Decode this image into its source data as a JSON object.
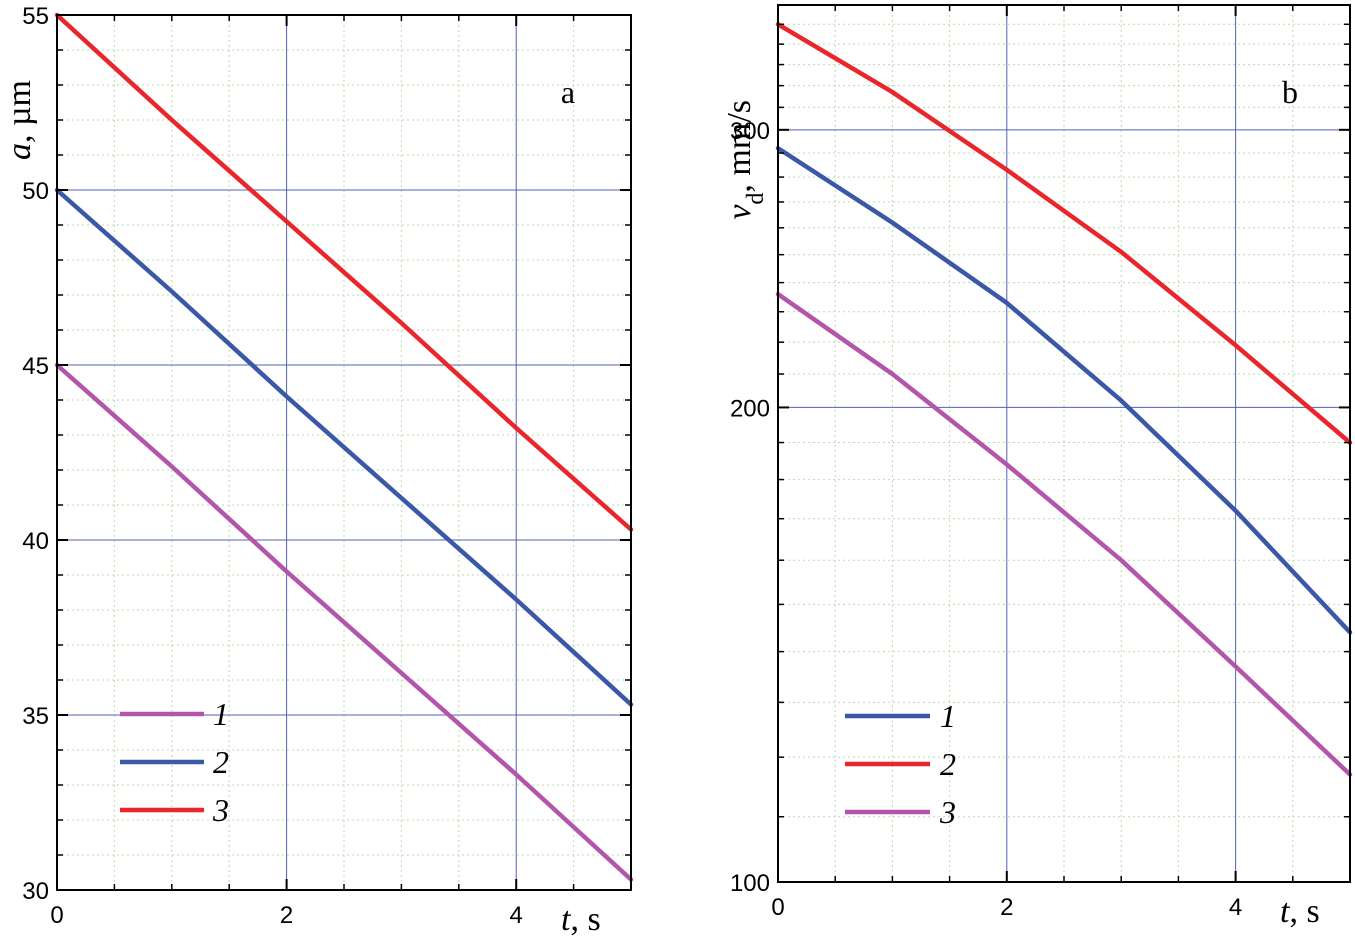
{
  "chart_data": [
    {
      "type": "line",
      "panel_label": "a",
      "xlabel": {
        "var": "t",
        "unit": ", s"
      },
      "ylabel": {
        "var": "a",
        "unit": ", µm"
      },
      "xlim": [
        0,
        5
      ],
      "ylim": [
        30,
        55
      ],
      "xticks": [
        0,
        2,
        4
      ],
      "yticks": [
        30,
        35,
        40,
        45,
        50,
        55
      ],
      "xminor_step": 0.5,
      "yminor_step": 1,
      "grid": true,
      "legend_position": "bottom-left",
      "series": [
        {
          "name": "1",
          "color": "#b356ab",
          "x": [
            0,
            1,
            2,
            3,
            4,
            5
          ],
          "y": [
            45.0,
            42.1,
            39.1,
            36.2,
            33.3,
            30.3
          ]
        },
        {
          "name": "2",
          "color": "#3a57a8",
          "x": [
            0,
            1,
            2,
            3,
            4,
            5
          ],
          "y": [
            50.0,
            47.1,
            44.1,
            41.2,
            38.3,
            35.3
          ]
        },
        {
          "name": "3",
          "color": "#e8262b",
          "x": [
            0,
            1,
            2,
            3,
            4,
            5
          ],
          "y": [
            55.0,
            52.0,
            49.1,
            46.2,
            43.2,
            40.3
          ]
        }
      ]
    },
    {
      "type": "line",
      "panel_label": "b",
      "xlabel": {
        "var": "t",
        "unit": ", s"
      },
      "ylabel": {
        "var": "v",
        "sub": "d",
        "unit": ", mm/s"
      },
      "xlim": [
        0,
        5
      ],
      "ylim": [
        100,
        360
      ],
      "yscale": "log",
      "xticks": [
        0,
        2,
        4
      ],
      "yticks": [
        100,
        200,
        300
      ],
      "xminor_step": 0.5,
      "yminor_ticks": [
        110,
        120,
        130,
        140,
        150,
        160,
        170,
        180,
        190,
        210,
        220,
        230,
        240,
        250,
        260,
        270,
        280,
        290,
        310,
        320,
        330,
        340,
        350
      ],
      "grid": true,
      "legend_position": "bottom-left",
      "series": [
        {
          "name": "1",
          "color": "#3a57a8",
          "x": [
            0,
            1,
            2,
            3,
            4,
            5
          ],
          "y": [
            292,
            262,
            233,
            202,
            172,
            144
          ]
        },
        {
          "name": "2",
          "color": "#e8262b",
          "x": [
            0,
            1,
            2,
            3,
            4,
            5
          ],
          "y": [
            350,
            317,
            283,
            251,
            219,
            190
          ]
        },
        {
          "name": "3",
          "color": "#b356ab",
          "x": [
            0,
            1,
            2,
            3,
            4,
            5
          ],
          "y": [
            236,
            210,
            184,
            160,
            137,
            117
          ]
        }
      ]
    }
  ]
}
